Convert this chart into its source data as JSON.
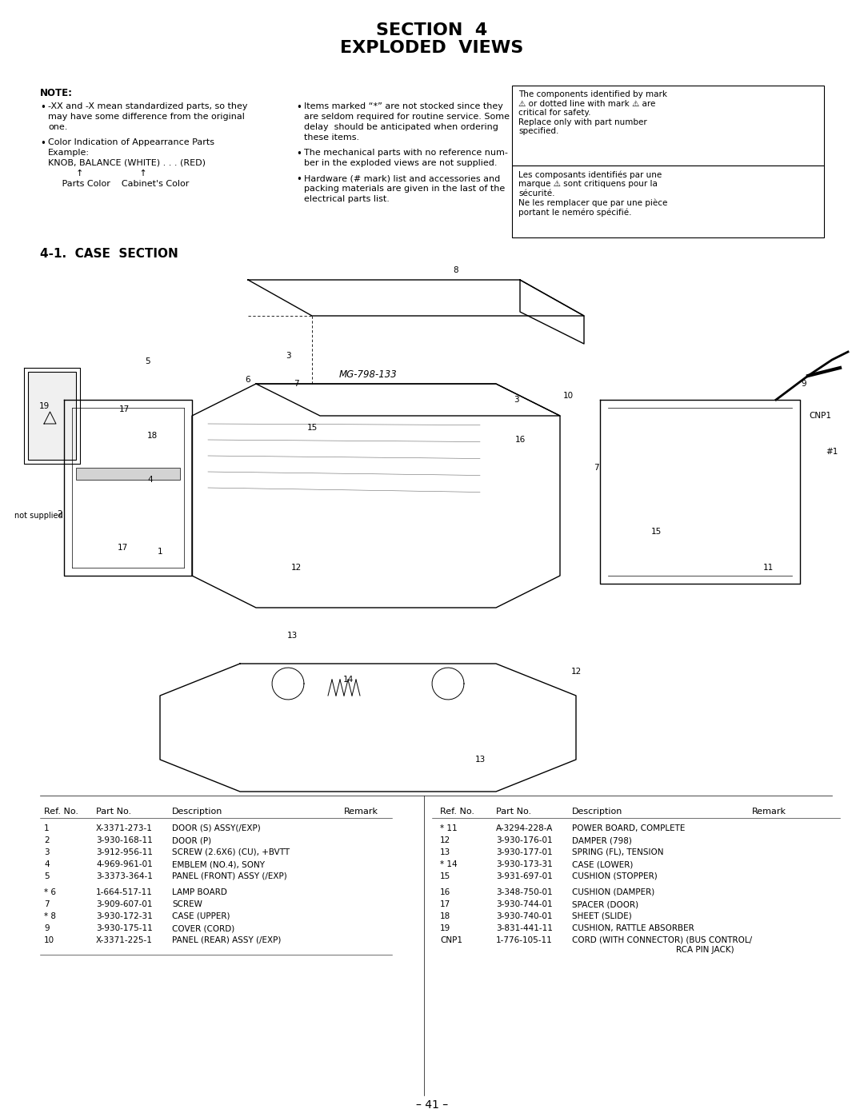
{
  "title_line1": "SECTION  4",
  "title_line2": "EXPLODED  VIEWS",
  "section_title": "4-1.  CASE  SECTION",
  "note_header": "NOTE:",
  "note_bullets_left": [
    "-XX and -X mean standardized parts, so they\nmay have some difference from the original\none.",
    "Color Indication of Appearrance Parts\nExample:\nKNOB, BALANCE (WHITE) . . . (RED)\n          ↑                    ↑\n     Parts Color    Cabinet's Color"
  ],
  "note_bullets_right": [
    "Items marked “*” are not stocked since they\nare seldom required for routine service. Some\ndelay  should be anticipated when ordering\nthese items.",
    "The mechanical parts with no reference num-\nber in the exploded views are not supplied.",
    "Hardware (# mark) list and accessories and\npacking materials are given in the last of the\nelectrical parts list."
  ],
  "safety_box_en": "The components identified by mark\n⚠ or dotted line with mark ⚠ are\ncritical for safety.\nReplace only with part number\nspecified.",
  "safety_box_fr": "Les composants identifiés par une\nmarque ⚠ sont critiquens pour la\nsécurité.\nNe les remplacer que par une pièce\nportant le neméro spécifié.",
  "page_number": "– 41 –",
  "parts_list": {
    "headers": [
      "Ref. No.",
      "Part No.",
      "Description",
      "Remark"
    ],
    "left_col": [
      [
        "1",
        "X-3371-273-1",
        "DOOR (S) ASSY(/EXP)",
        ""
      ],
      [
        "2",
        "3-930-168-11",
        "DOOR (P)",
        ""
      ],
      [
        "3",
        "3-912-956-11",
        "SCREW (2.6X6) (CU), +BVTT",
        ""
      ],
      [
        "4",
        "4-969-961-01",
        "EMBLEM (NO.4), SONY",
        ""
      ],
      [
        "5",
        "3-3373-364-1",
        "PANEL (FRONT) ASSY (/EXP)",
        ""
      ],
      [
        "",
        "",
        "",
        ""
      ],
      [
        "* 6",
        "1-664-517-11",
        "LAMP BOARD",
        ""
      ],
      [
        "7",
        "3-909-607-01",
        "SCREW",
        ""
      ],
      [
        "* 8",
        "3-930-172-31",
        "CASE (UPPER)",
        ""
      ],
      [
        "9",
        "3-930-175-11",
        "COVER (CORD)",
        ""
      ],
      [
        "10",
        "X-3371-225-1",
        "PANEL (REAR) ASSY (/EXP)",
        ""
      ]
    ],
    "right_col": [
      [
        "* 11",
        "A-3294-228-A",
        "POWER BOARD, COMPLETE",
        ""
      ],
      [
        "12",
        "3-930-176-01",
        "DAMPER (798)",
        ""
      ],
      [
        "13",
        "3-930-177-01",
        "SPRING (FL), TENSION",
        ""
      ],
      [
        "* 14",
        "3-930-173-31",
        "CASE (LOWER)",
        ""
      ],
      [
        "15",
        "3-931-697-01",
        "CUSHION (STOPPER)",
        ""
      ],
      [
        "",
        "",
        "",
        ""
      ],
      [
        "16",
        "3-348-750-01",
        "CUSHION (DAMPER)",
        ""
      ],
      [
        "17",
        "3-930-744-01",
        "SPACER (DOOR)",
        ""
      ],
      [
        "18",
        "3-930-740-01",
        "SHEET (SLIDE)",
        ""
      ],
      [
        "19",
        "3-831-441-11",
        "CUSHION, RATTLE ABSORBER",
        ""
      ],
      [
        "CNP1",
        "1-776-105-11",
        "CORD (WITH CONNECTOR) (BUS CONTROL/\n                                        RCA PIN JACK)",
        ""
      ]
    ]
  },
  "bg_color": "#ffffff",
  "text_color": "#000000",
  "diagram_label": "MG-798-133"
}
